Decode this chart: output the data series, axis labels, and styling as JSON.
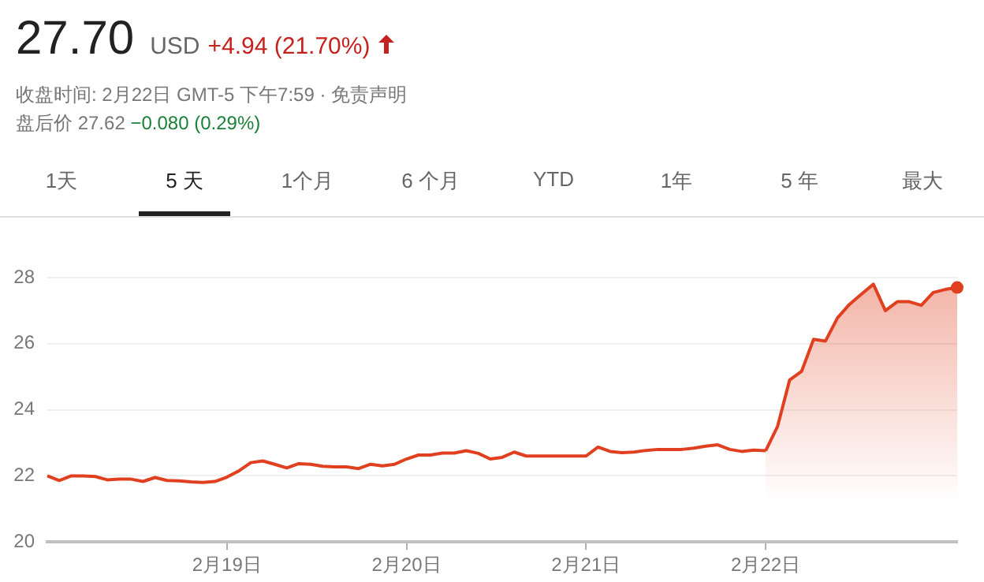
{
  "chart_data": {
    "type": "line",
    "title": "27.70",
    "subtitle": "USD +4.94 (21.70%)",
    "annotations": [
      "收盘时间: 2月22日 GMT-5 下午7:59 · 免责声明",
      "盘后价 27.62 −0.080 (0.29%)",
      "1天",
      "5 天",
      "1个月",
      "6 个月",
      "YTD",
      "1年",
      "5 年",
      "最大"
    ],
    "categories": [
      null,
      null,
      null,
      null,
      null,
      null,
      null,
      null,
      null,
      null,
      null,
      null,
      null,
      null,
      null,
      "2月19日",
      null,
      null,
      null,
      null,
      null,
      null,
      null,
      null,
      null,
      null,
      null,
      null,
      null,
      null,
      "2月20日",
      null,
      null,
      null,
      null,
      null,
      null,
      null,
      null,
      null,
      null,
      null,
      null,
      null,
      null,
      "2月21日",
      null,
      null,
      null,
      null,
      null,
      null,
      null,
      null,
      null,
      null,
      null,
      null,
      null,
      null,
      "2月22日",
      null,
      null,
      null,
      null,
      null,
      null,
      null,
      null,
      null,
      null,
      null,
      null,
      null,
      null,
      null,
      null
    ],
    "series": [
      {
        "color": "#e0401f",
        "values": [
          22.0,
          21.86,
          22.0,
          22.0,
          21.98,
          21.88,
          21.9,
          21.9,
          21.83,
          21.95,
          21.86,
          21.85,
          21.82,
          21.8,
          21.83,
          21.96,
          22.15,
          22.4,
          22.45,
          22.35,
          22.24,
          22.37,
          22.35,
          22.29,
          22.27,
          22.27,
          22.22,
          22.35,
          22.3,
          22.35,
          22.51,
          22.63,
          22.63,
          22.69,
          22.69,
          22.76,
          22.68,
          22.51,
          22.56,
          22.72,
          22.6,
          22.6,
          22.6,
          22.6,
          22.6,
          22.6,
          22.87,
          22.74,
          22.7,
          22.72,
          22.77,
          22.8,
          22.8,
          22.8,
          22.84,
          22.9,
          22.94,
          22.8,
          22.74,
          22.78,
          22.76,
          null,
          null,
          null,
          null,
          null,
          null,
          null,
          null,
          null,
          null,
          null,
          null,
          null,
          null,
          null,
          null
        ]
      },
      {
        "type": "area",
        "color": "#e0401f",
        "values": [
          null,
          null,
          null,
          null,
          null,
          null,
          null,
          null,
          null,
          null,
          null,
          null,
          null,
          null,
          null,
          null,
          null,
          null,
          null,
          null,
          null,
          null,
          null,
          null,
          null,
          null,
          null,
          null,
          null,
          null,
          null,
          null,
          null,
          null,
          null,
          null,
          null,
          null,
          null,
          null,
          null,
          null,
          null,
          null,
          null,
          null,
          null,
          null,
          null,
          null,
          null,
          null,
          null,
          null,
          null,
          null,
          null,
          null,
          null,
          null,
          22.76,
          23.5,
          24.9,
          25.16,
          26.13,
          26.08,
          26.78,
          27.19,
          27.5,
          27.8,
          27.0,
          27.27,
          27.27,
          27.16,
          27.55,
          27.64,
          27.7
        ]
      }
    ],
    "ylim": [
      20,
      28
    ],
    "yticks": [
      20,
      22,
      24,
      26,
      28
    ],
    "grid": "y",
    "legend": false
  }
}
